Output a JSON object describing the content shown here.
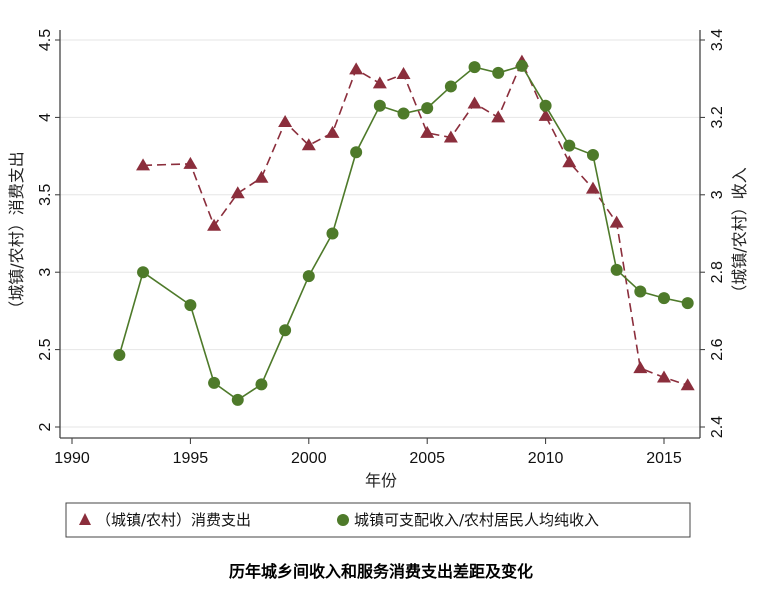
{
  "chart_data": {
    "type": "line",
    "title": "历年城乡间收入和服务消费支出差距及变化",
    "xlabel": "年份",
    "ylabel_left": "（城镇/农村）消费支出",
    "ylabel_right": "（城镇/农村）收入",
    "xlim": [
      1990,
      2016
    ],
    "xticks": [
      "1990",
      "1995",
      "2000",
      "2005",
      "2010",
      "2015"
    ],
    "ylim_left": [
      2,
      4.5
    ],
    "yticks_left": [
      "2",
      "2.5",
      "3",
      "3.5",
      "4",
      "4.5"
    ],
    "ylim_right": [
      2.4,
      3.4
    ],
    "yticks_right": [
      "2.4",
      "2.6",
      "2.8",
      "3",
      "3.2",
      "3.4"
    ],
    "grid": true,
    "legend_position": "bottom",
    "series": [
      {
        "name": "（城镇/农村）消费支出",
        "axis": "left",
        "marker": "triangle",
        "style": "dashed",
        "color": "#8b2e3c",
        "x": [
          1993,
          1995,
          1996,
          1997,
          1998,
          1999,
          2000,
          2001,
          2002,
          2003,
          2004,
          2005,
          2006,
          2007,
          2008,
          2009,
          2010,
          2011,
          2012,
          2013,
          2014,
          2015,
          2016
        ],
        "y": [
          3.69,
          3.7,
          3.3,
          3.51,
          3.61,
          3.97,
          3.82,
          3.9,
          4.31,
          4.22,
          4.28,
          3.9,
          3.87,
          4.09,
          4.0,
          4.36,
          4.01,
          3.71,
          3.54,
          3.32,
          2.38,
          2.32,
          2.27
        ]
      },
      {
        "name": "城镇可支配收入/农村居民人均纯收入",
        "axis": "right",
        "marker": "circle",
        "style": "solid",
        "color": "#4e7a2a",
        "x": [
          1992,
          1993,
          1995,
          1996,
          1997,
          1998,
          1999,
          2000,
          2001,
          2002,
          2003,
          2004,
          2005,
          2006,
          2007,
          2008,
          2009,
          2010,
          2011,
          2012,
          2013,
          2014,
          2015,
          2016
        ],
        "y": [
          2.586,
          2.8,
          2.715,
          2.514,
          2.47,
          2.51,
          2.65,
          2.79,
          2.9,
          3.11,
          3.23,
          3.21,
          3.224,
          3.28,
          3.33,
          3.315,
          3.333,
          3.23,
          3.127,
          3.103,
          2.806,
          2.75,
          2.733,
          2.72
        ]
      }
    ]
  }
}
